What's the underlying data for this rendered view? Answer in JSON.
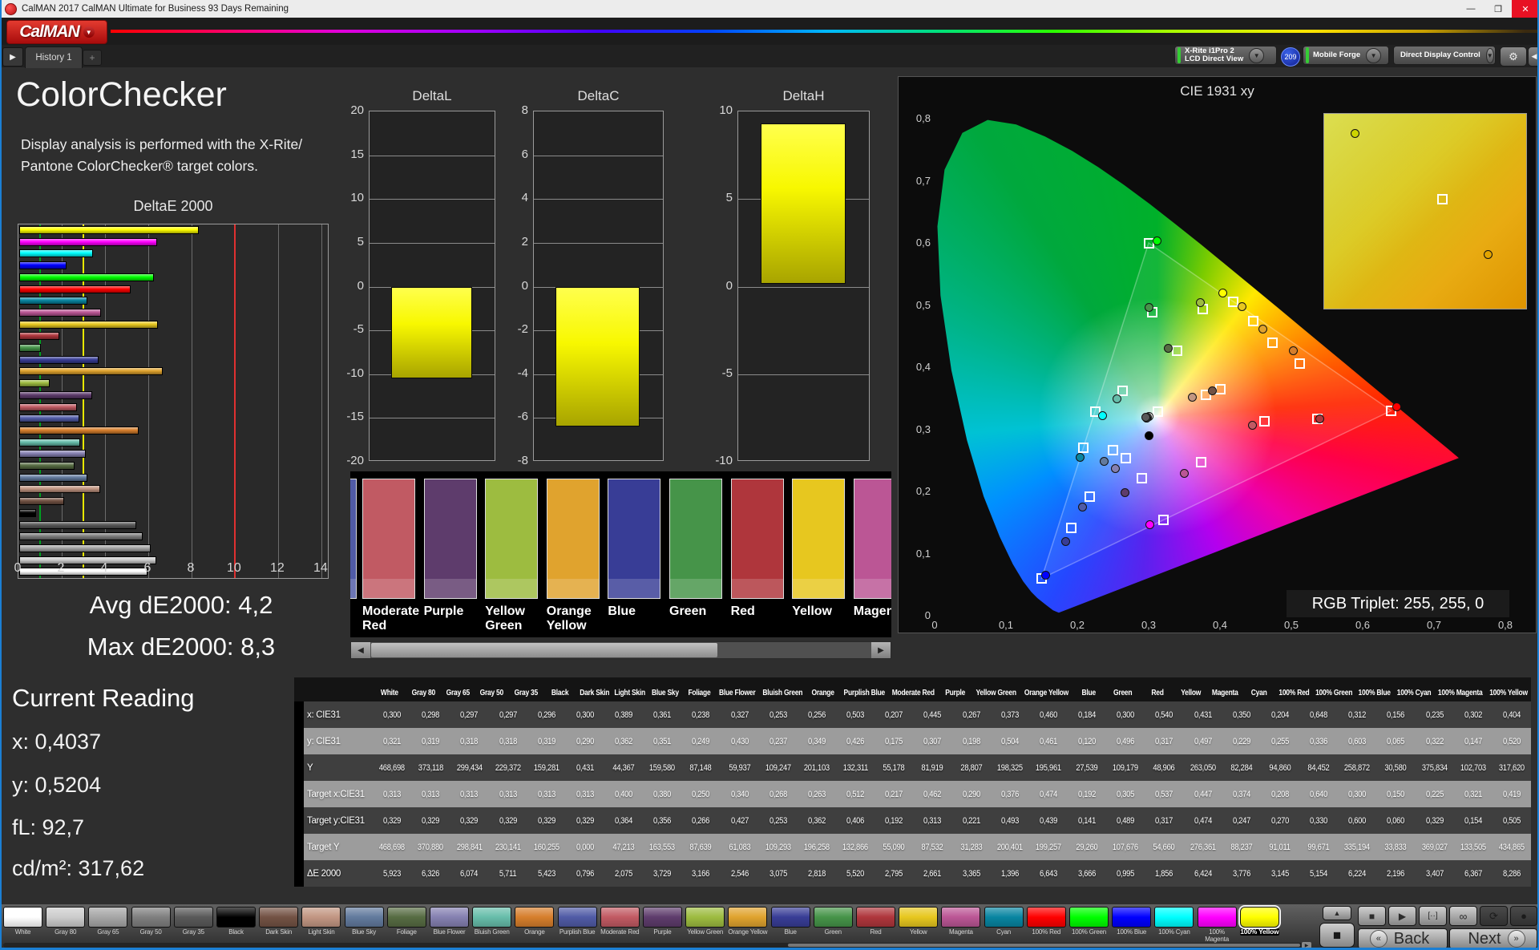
{
  "window": {
    "title": "CalMAN 2017 CalMAN Ultimate for Business 93 Days Remaining",
    "minimize": "—",
    "maximize": "❐",
    "close": "✕"
  },
  "header": {
    "logo_text": "CalMAN",
    "logo_chevron": "▼"
  },
  "tabrow": {
    "scroll_arrow": "▶",
    "history_tab": "History 1",
    "add_tab": "+"
  },
  "meters": [
    {
      "line1": "X-Rite i1Pro 2",
      "line2": "LCD Direct View",
      "accent": "#35cc35",
      "chevron": "▼"
    },
    {
      "line1": "Mobile Forge",
      "line2": "",
      "accent": "#35cc35",
      "chevron": "▼"
    },
    {
      "line1": "Direct Display Control",
      "line2": "",
      "accent": "#e8de00",
      "chevron": "▼"
    }
  ],
  "session_badge": "209",
  "toolbar": {
    "gear": "⚙",
    "help": "?",
    "collapse": "◀"
  },
  "left": {
    "title": "ColorChecker",
    "desc_line1": "Display analysis is performed with the X-Rite/",
    "desc_line2": "Pantone ColorChecker® target colors.",
    "avg": "Avg dE2000: 4,2",
    "max": "Max dE2000: 8,3",
    "current_title": "Current Reading",
    "readings": [
      "x: 0,4037",
      "y: 0,5204",
      "fL: 92,7",
      "cd/m²: 317,62"
    ]
  },
  "chart_data": [
    {
      "type": "bar",
      "title": "DeltaE 2000",
      "orientation": "horizontal",
      "categories": [
        "100% Yellow",
        "100% Magenta",
        "100% Cyan",
        "100% Blue",
        "100% Green",
        "100% Red",
        "Cyan",
        "Magenta",
        "Yellow",
        "Red",
        "Green",
        "Blue",
        "Orange Yellow",
        "Yellow Green",
        "Purple",
        "Moderate Red",
        "Purplish Blue",
        "Orange",
        "Bluish Green",
        "Blue Flower",
        "Foliage",
        "Blue Sky",
        "Light Skin",
        "Dark Skin",
        "Black",
        "Gray 35",
        "Gray 50",
        "Gray 65",
        "Gray 80",
        "White"
      ],
      "values": [
        8.286,
        6.367,
        3.407,
        2.196,
        6.224,
        5.154,
        3.145,
        3.776,
        6.424,
        1.856,
        0.995,
        3.666,
        6.643,
        1.396,
        3.365,
        2.661,
        2.795,
        5.52,
        2.818,
        3.075,
        2.546,
        3.166,
        3.729,
        2.075,
        0.796,
        5.423,
        5.711,
        6.074,
        6.326,
        5.923
      ],
      "xlim": [
        0,
        14.3
      ],
      "xticks": [
        0,
        2,
        4,
        6,
        8,
        10,
        12,
        14
      ],
      "ref_lines": {
        "green": 1,
        "yellow": 3,
        "red": 10
      }
    },
    {
      "type": "bar",
      "title": "DeltaL",
      "categories": [
        "100% Yellow"
      ],
      "values": [
        -10.5
      ],
      "ylim": [
        -20,
        20
      ],
      "ytick_step": 5
    },
    {
      "type": "bar",
      "title": "DeltaC",
      "categories": [
        "100% Yellow"
      ],
      "values": [
        -6.4
      ],
      "ylim": [
        -8,
        8
      ],
      "ytick_step": 2
    },
    {
      "type": "bar",
      "title": "DeltaH",
      "categories": [
        "100% Yellow"
      ],
      "values": [
        9.3
      ],
      "ylim": [
        -10,
        10
      ],
      "ytick_step": 5
    },
    {
      "type": "scatter",
      "title": "CIE 1931 xy",
      "xlim": [
        0,
        0.8
      ],
      "ylim": [
        0,
        0.8
      ],
      "series": [
        {
          "name": "measured",
          "points": [
            [
              0.3,
              0.321
            ],
            [
              0.298,
              0.319
            ],
            [
              0.297,
              0.318
            ],
            [
              0.297,
              0.318
            ],
            [
              0.296,
              0.319
            ],
            [
              0.3,
              0.29
            ],
            [
              0.389,
              0.362
            ],
            [
              0.361,
              0.351
            ],
            [
              0.238,
              0.249
            ],
            [
              0.327,
              0.43
            ],
            [
              0.253,
              0.237
            ],
            [
              0.256,
              0.349
            ],
            [
              0.503,
              0.426
            ],
            [
              0.207,
              0.175
            ],
            [
              0.445,
              0.307
            ],
            [
              0.267,
              0.198
            ],
            [
              0.373,
              0.504
            ],
            [
              0.46,
              0.461
            ],
            [
              0.184,
              0.12
            ],
            [
              0.3,
              0.496
            ],
            [
              0.54,
              0.317
            ],
            [
              0.431,
              0.497
            ],
            [
              0.35,
              0.229
            ],
            [
              0.204,
              0.255
            ],
            [
              0.648,
              0.336
            ],
            [
              0.312,
              0.603
            ],
            [
              0.156,
              0.065
            ],
            [
              0.235,
              0.322
            ],
            [
              0.302,
              0.147
            ],
            [
              0.404,
              0.52
            ]
          ]
        },
        {
          "name": "target",
          "points": [
            [
              0.313,
              0.329
            ],
            [
              0.313,
              0.329
            ],
            [
              0.313,
              0.329
            ],
            [
              0.313,
              0.329
            ],
            [
              0.313,
              0.329
            ],
            [
              0.313,
              0.329
            ],
            [
              0.4,
              0.364
            ],
            [
              0.38,
              0.356
            ],
            [
              0.25,
              0.266
            ],
            [
              0.34,
              0.427
            ],
            [
              0.268,
              0.253
            ],
            [
              0.263,
              0.362
            ],
            [
              0.512,
              0.406
            ],
            [
              0.217,
              0.192
            ],
            [
              0.462,
              0.313
            ],
            [
              0.29,
              0.221
            ],
            [
              0.376,
              0.493
            ],
            [
              0.474,
              0.439
            ],
            [
              0.192,
              0.141
            ],
            [
              0.305,
              0.489
            ],
            [
              0.537,
              0.317
            ],
            [
              0.447,
              0.474
            ],
            [
              0.374,
              0.247
            ],
            [
              0.208,
              0.27
            ],
            [
              0.64,
              0.33
            ],
            [
              0.3,
              0.6
            ],
            [
              0.15,
              0.06
            ],
            [
              0.225,
              0.329
            ],
            [
              0.321,
              0.154
            ],
            [
              0.419,
              0.505
            ]
          ]
        }
      ]
    }
  ],
  "cie": {
    "title": "CIE 1931 xy",
    "rgb_triplet": "RGB Triplet: 255, 255, 0",
    "y_ticks": [
      "0",
      "0,1",
      "0,2",
      "0,3",
      "0,4",
      "0,5",
      "0,6",
      "0,7",
      "0,8"
    ],
    "x_ticks": [
      "0",
      "0,1",
      "0,2",
      "0,3",
      "0,4",
      "0,5",
      "0,6",
      "0,7",
      "0,8"
    ]
  },
  "table": {
    "row_labels": [
      "x: CIE31",
      "y: CIE31",
      "Y",
      "Target x:CIE31",
      "Target y:CIE31",
      "Target Y",
      "ΔE 2000"
    ]
  },
  "patches": [
    {
      "name": "White",
      "color": "#ffffff",
      "v": [
        "0,300",
        "0,321",
        "468,698",
        "0,313",
        "0,329",
        "468,698",
        "5,923"
      ]
    },
    {
      "name": "Gray 80",
      "color": "#cccccc",
      "v": [
        "0,298",
        "0,319",
        "373,118",
        "0,313",
        "0,329",
        "370,880",
        "6,326"
      ]
    },
    {
      "name": "Gray 65",
      "color": "#a6a6a6",
      "v": [
        "0,297",
        "0,318",
        "299,434",
        "0,313",
        "0,329",
        "298,841",
        "6,074"
      ]
    },
    {
      "name": "Gray 50",
      "color": "#7f7f7f",
      "v": [
        "0,297",
        "0,318",
        "229,372",
        "0,313",
        "0,329",
        "230,141",
        "5,711"
      ]
    },
    {
      "name": "Gray 35",
      "color": "#595959",
      "v": [
        "0,296",
        "0,319",
        "159,281",
        "0,313",
        "0,329",
        "160,255",
        "5,423"
      ]
    },
    {
      "name": "Black",
      "color": "#000000",
      "v": [
        "0,300",
        "0,290",
        "0,431",
        "0,313",
        "0,329",
        "0,000",
        "0,796"
      ]
    },
    {
      "name": "Dark Skin",
      "color": "#735244",
      "v": [
        "0,389",
        "0,362",
        "44,367",
        "0,400",
        "0,364",
        "47,213",
        "2,075"
      ]
    },
    {
      "name": "Light Skin",
      "color": "#c29682",
      "v": [
        "0,361",
        "0,351",
        "159,580",
        "0,380",
        "0,356",
        "163,553",
        "3,729"
      ]
    },
    {
      "name": "Blue Sky",
      "color": "#627a9d",
      "v": [
        "0,238",
        "0,249",
        "87,148",
        "0,250",
        "0,266",
        "87,639",
        "3,166"
      ]
    },
    {
      "name": "Foliage",
      "color": "#576c43",
      "v": [
        "0,327",
        "0,430",
        "59,937",
        "0,340",
        "0,427",
        "61,083",
        "2,546"
      ]
    },
    {
      "name": "Blue Flower",
      "color": "#8580b1",
      "v": [
        "0,253",
        "0,237",
        "109,247",
        "0,268",
        "0,253",
        "109,293",
        "3,075"
      ]
    },
    {
      "name": "Bluish Green",
      "color": "#67bdaa",
      "v": [
        "0,256",
        "0,349",
        "201,103",
        "0,263",
        "0,362",
        "196,258",
        "2,818"
      ]
    },
    {
      "name": "Orange",
      "color": "#d67e2c",
      "v": [
        "0,503",
        "0,426",
        "132,311",
        "0,512",
        "0,406",
        "132,866",
        "5,520"
      ]
    },
    {
      "name": "Purplish Blue",
      "color": "#505ba6",
      "v": [
        "0,207",
        "0,175",
        "55,178",
        "0,217",
        "0,192",
        "55,090",
        "2,795"
      ]
    },
    {
      "name": "Moderate Red",
      "color": "#c15a63",
      "v": [
        "0,445",
        "0,307",
        "81,919",
        "0,462",
        "0,313",
        "87,532",
        "2,661"
      ]
    },
    {
      "name": "Purple",
      "color": "#5e3c6c",
      "v": [
        "0,267",
        "0,198",
        "28,807",
        "0,290",
        "0,221",
        "31,283",
        "3,365"
      ]
    },
    {
      "name": "Yellow Green",
      "color": "#9dbc40",
      "v": [
        "0,373",
        "0,504",
        "198,325",
        "0,376",
        "0,493",
        "200,401",
        "1,396"
      ]
    },
    {
      "name": "Orange Yellow",
      "color": "#e0a32e",
      "v": [
        "0,460",
        "0,461",
        "195,961",
        "0,474",
        "0,439",
        "199,257",
        "6,643"
      ]
    },
    {
      "name": "Blue",
      "color": "#383d96",
      "v": [
        "0,184",
        "0,120",
        "27,539",
        "0,192",
        "0,141",
        "29,260",
        "3,666"
      ]
    },
    {
      "name": "Green",
      "color": "#469449",
      "v": [
        "0,300",
        "0,496",
        "109,179",
        "0,305",
        "0,489",
        "107,676",
        "0,995"
      ]
    },
    {
      "name": "Red",
      "color": "#af363c",
      "v": [
        "0,540",
        "0,317",
        "48,906",
        "0,537",
        "0,317",
        "54,660",
        "1,856"
      ]
    },
    {
      "name": "Yellow",
      "color": "#e7c71f",
      "v": [
        "0,431",
        "0,497",
        "263,050",
        "0,447",
        "0,474",
        "276,361",
        "6,424"
      ]
    },
    {
      "name": "Magenta",
      "color": "#bb5695",
      "v": [
        "0,350",
        "0,229",
        "82,284",
        "0,374",
        "0,247",
        "88,237",
        "3,776"
      ]
    },
    {
      "name": "Cyan",
      "color": "#0885a1",
      "v": [
        "0,204",
        "0,255",
        "94,860",
        "0,208",
        "0,270",
        "91,011",
        "3,145"
      ]
    },
    {
      "name": "100% Red",
      "color": "#ff0000",
      "v": [
        "0,648",
        "0,336",
        "84,452",
        "0,640",
        "0,330",
        "99,671",
        "5,154"
      ]
    },
    {
      "name": "100% Green",
      "color": "#00ff00",
      "v": [
        "0,312",
        "0,603",
        "258,872",
        "0,300",
        "0,600",
        "335,194",
        "6,224"
      ]
    },
    {
      "name": "100% Blue",
      "color": "#0000ff",
      "v": [
        "0,156",
        "0,065",
        "30,580",
        "0,150",
        "0,060",
        "33,833",
        "2,196"
      ]
    },
    {
      "name": "100% Cyan",
      "color": "#00ffff",
      "v": [
        "0,235",
        "0,322",
        "375,834",
        "0,225",
        "0,329",
        "369,027",
        "3,407"
      ]
    },
    {
      "name": "100% Magenta",
      "color": "#ff00ff",
      "v": [
        "0,302",
        "0,147",
        "102,703",
        "0,321",
        "0,154",
        "133,505",
        "6,367"
      ]
    },
    {
      "name": "100% Yellow",
      "color": "#ffff00",
      "v": [
        "0,404",
        "0,520",
        "317,620",
        "0,419",
        "0,505",
        "434,865",
        "8,286"
      ]
    }
  ],
  "bottom": {
    "selected": "100% Yellow",
    "back": "Back",
    "next": "Next",
    "transport": {
      "up": "▲",
      "big_stop": "■",
      "stop": "■",
      "play": "▶",
      "step": "[··]",
      "loop": "∞",
      "refresh": "⟳",
      "record": "●",
      "back_arrow": "«",
      "next_arrow": "»"
    }
  }
}
